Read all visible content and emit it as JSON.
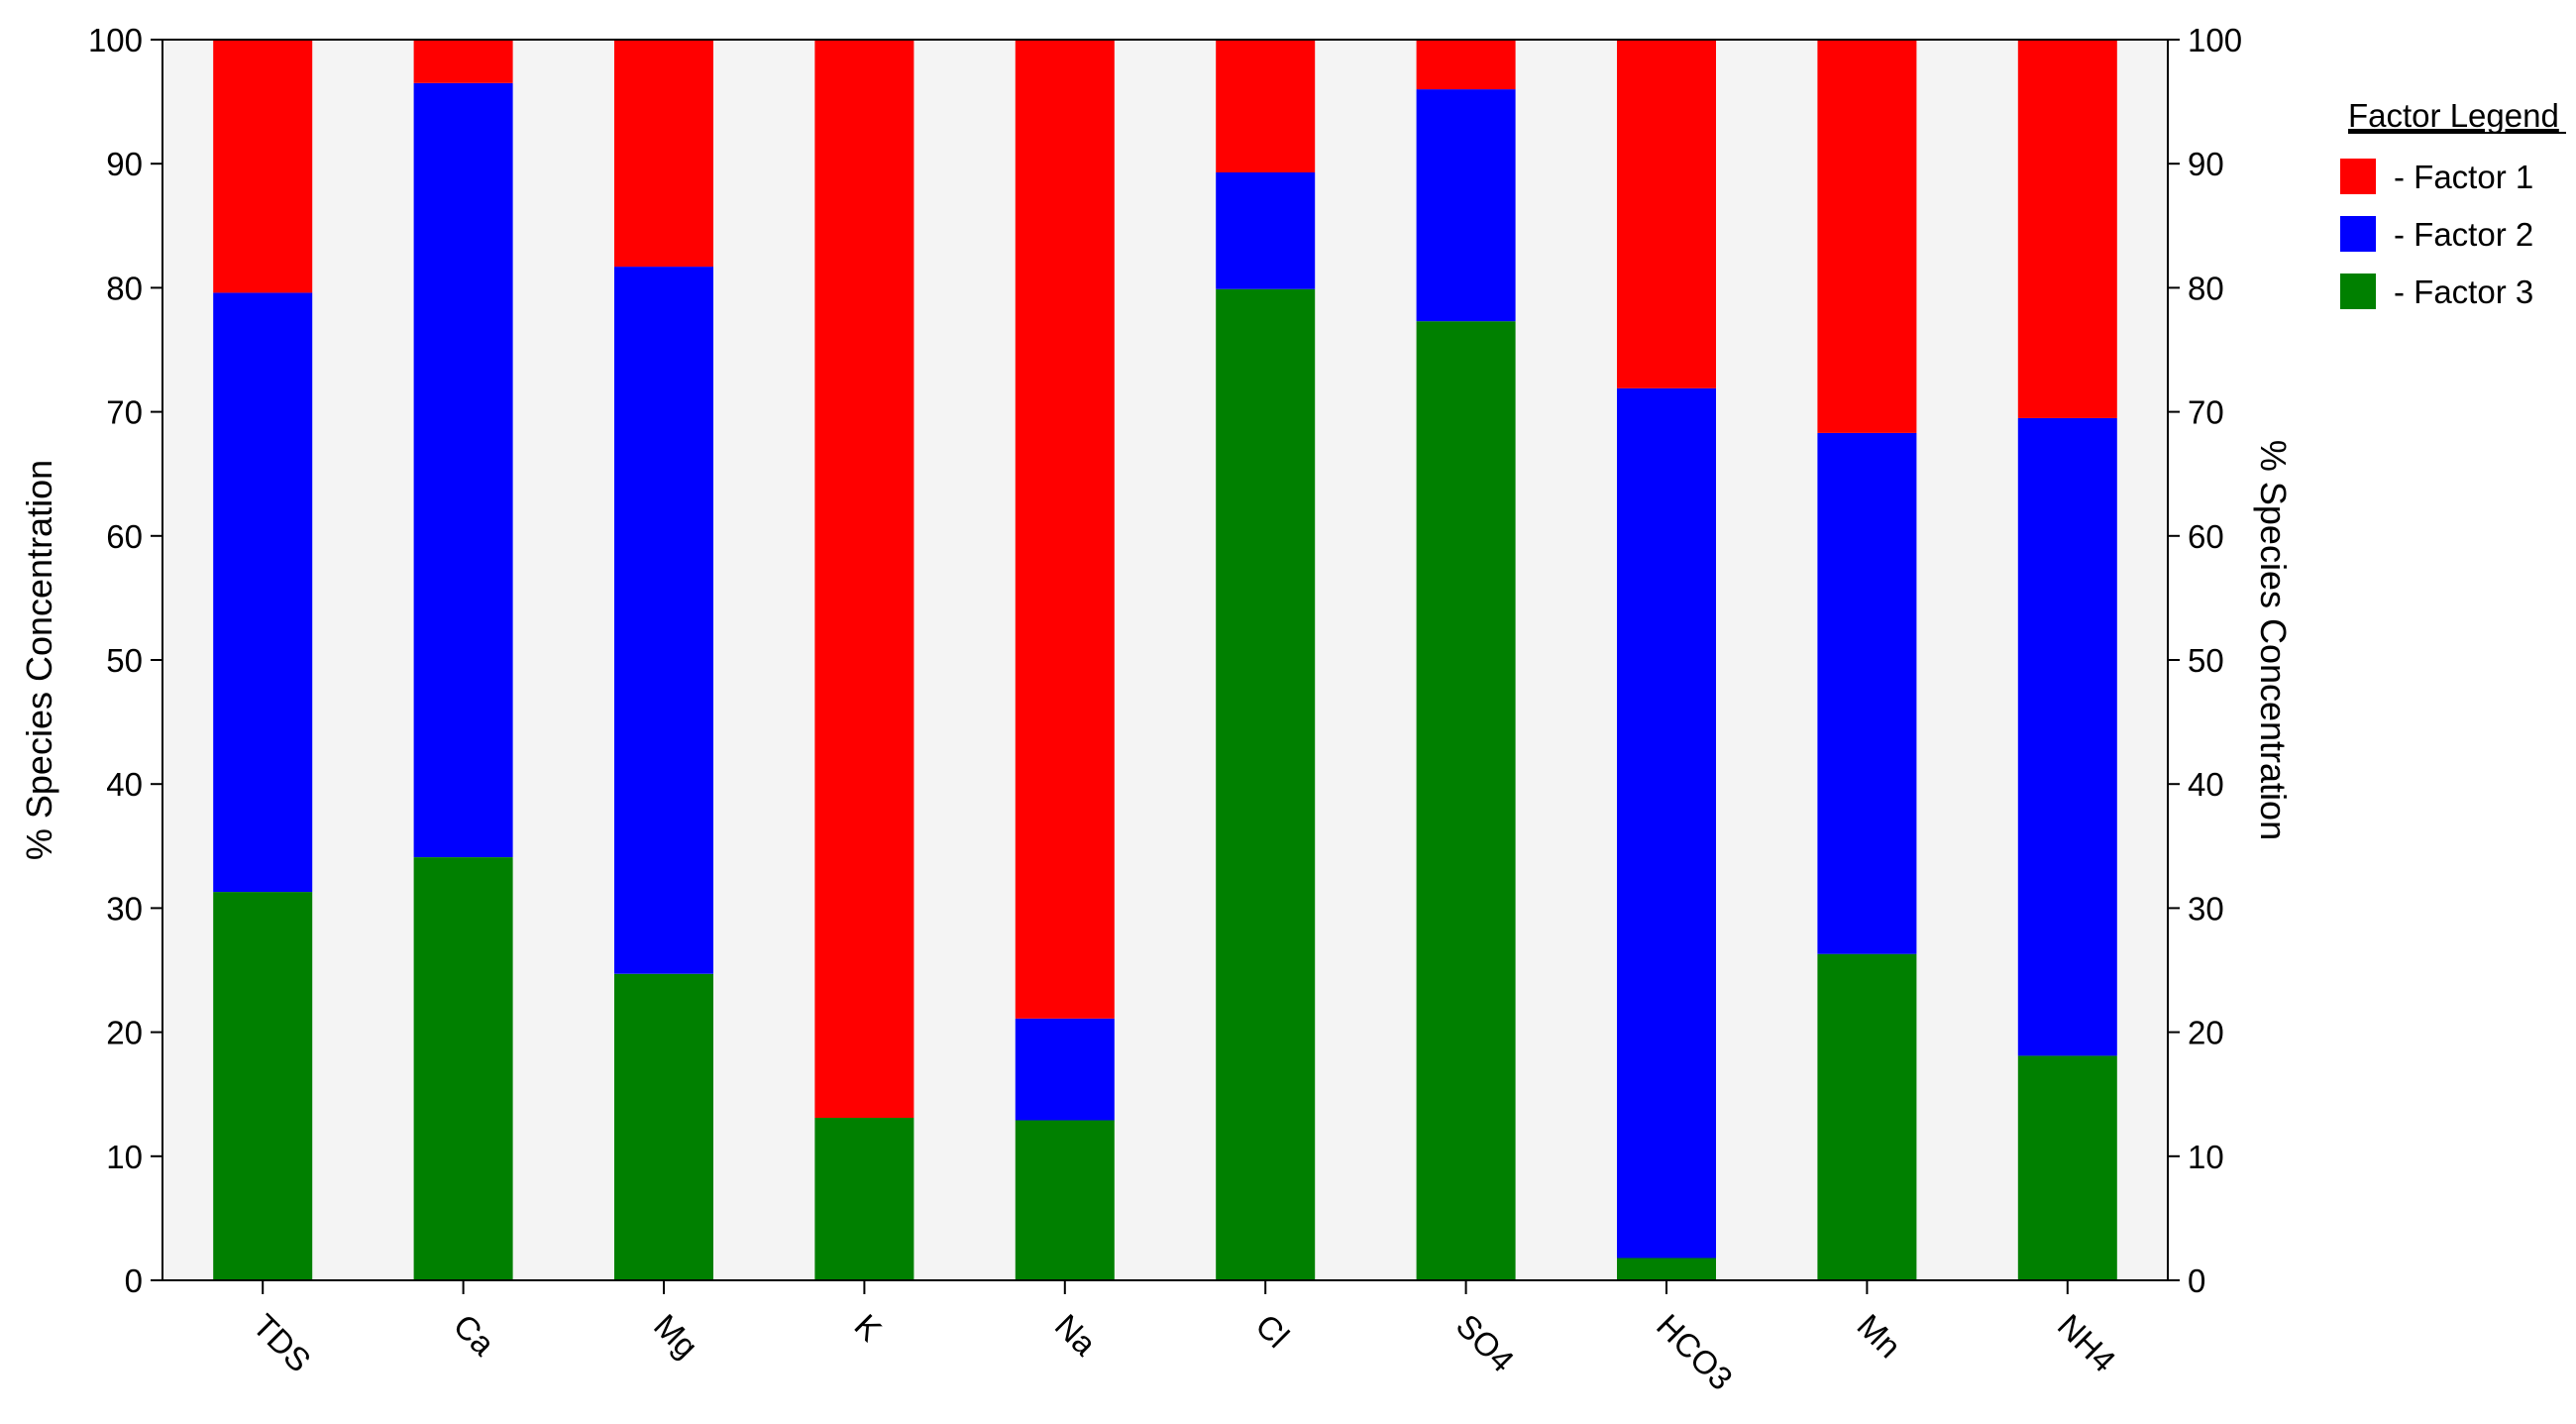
{
  "chart_data": {
    "type": "bar",
    "stacked": true,
    "categories": [
      "TDS",
      "Ca",
      "Mg",
      "K",
      "Na",
      "Cl",
      "SO4",
      "HCO3",
      "Mn",
      "NH4"
    ],
    "series": [
      {
        "name": "Factor 3",
        "color": "#008000",
        "values": [
          31.3,
          34.1,
          24.7,
          13.1,
          12.9,
          79.9,
          77.3,
          1.8,
          26.3,
          18.1
        ]
      },
      {
        "name": "Factor 2",
        "color": "#0000ff",
        "values": [
          48.3,
          62.4,
          57.0,
          0.0,
          8.2,
          9.4,
          18.7,
          70.1,
          42.0,
          51.4
        ]
      },
      {
        "name": "Factor 1",
        "color": "#ff0000",
        "values": [
          20.4,
          3.5,
          18.3,
          86.9,
          78.9,
          10.7,
          4.0,
          28.1,
          31.7,
          30.5
        ]
      }
    ],
    "ylabel": "% Species Concentration",
    "ylabel_right": "% Species Concentration",
    "ylim": [
      0,
      100
    ],
    "yticks": [
      0,
      10,
      20,
      30,
      40,
      50,
      60,
      70,
      80,
      90,
      100
    ],
    "legend": {
      "title": "Factor Legend",
      "items": [
        "- Factor 1",
        "- Factor 2",
        "- Factor 3"
      ],
      "colors": [
        "#ff0000",
        "#0000ff",
        "#008000"
      ],
      "placement": "right"
    },
    "background": "#f4f4f4",
    "grid": false
  }
}
